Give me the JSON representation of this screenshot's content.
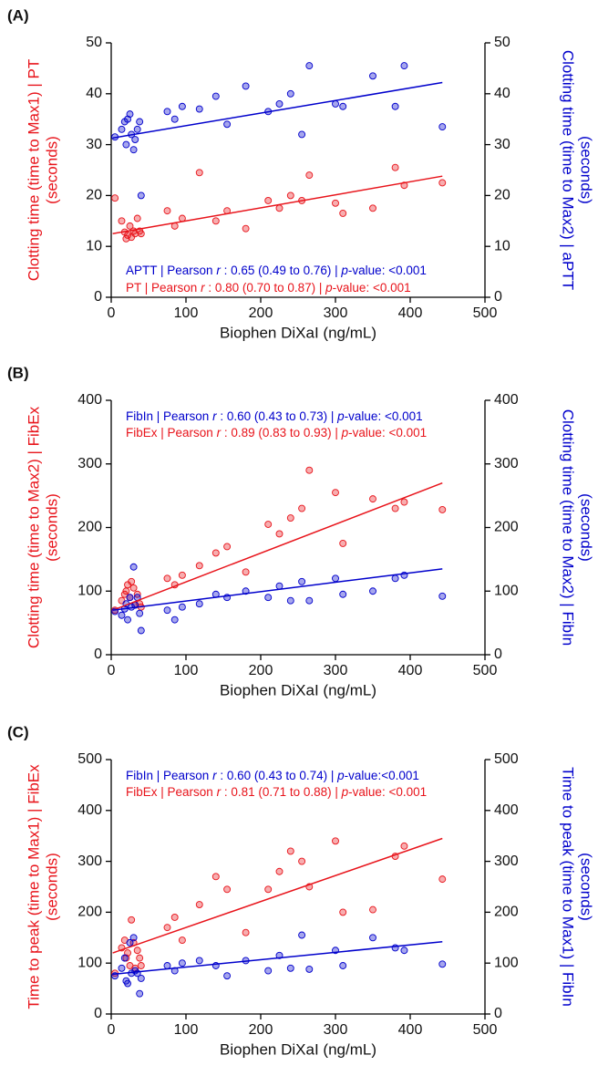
{
  "chart_data": [
    {
      "type": "scatter",
      "panel_label": "(A)",
      "xlabel": "Biophen DiXaI (ng/mL)",
      "ylabel": [
        "Clotting time (time to Max1) | PT",
        "(seconds)"
      ],
      "y2label": [
        "Clotting time (time to Max2) | aPTT",
        "(seconds)"
      ],
      "xlim": [
        0,
        500
      ],
      "xticks": [
        0,
        100,
        200,
        300,
        400,
        500
      ],
      "ylim": [
        0,
        50
      ],
      "yticks": [
        0,
        10,
        20,
        30,
        40,
        50
      ],
      "y2lim": [
        0,
        50
      ],
      "y2ticks": [
        0,
        10,
        20,
        30,
        40,
        50
      ],
      "annotations": [
        {
          "color": "#0000cc",
          "parts": [
            "APTT | Pearson ",
            "r",
            " : 0.65 (0.49 to 0.76) | ",
            "p",
            "-value: <0.001"
          ]
        },
        {
          "color": "#e8141b",
          "parts": [
            "PT | Pearson ",
            "r",
            " : 0.80 (0.70 to 0.87) | ",
            "p",
            "-value: <0.001"
          ]
        }
      ],
      "series": [
        {
          "color": "#e8141b",
          "axis": "y",
          "x": [
            5,
            14,
            18,
            20,
            22,
            25,
            27,
            30,
            32,
            35,
            38,
            40,
            75,
            85,
            95,
            118,
            140,
            155,
            180,
            210,
            225,
            240,
            255,
            265,
            300,
            310,
            350,
            380,
            392,
            443
          ],
          "values": [
            19.5,
            15,
            12.8,
            11.5,
            12.2,
            14,
            11.8,
            13,
            12.5,
            15.5,
            13,
            12.5,
            17,
            14,
            15.5,
            24.5,
            15,
            17,
            13.5,
            19,
            17.5,
            20,
            19,
            24,
            18.5,
            16.5,
            17.5,
            25.5,
            22,
            22.5
          ],
          "fit": {
            "x": [
              2,
              443
            ],
            "y": [
              12.5,
              23.8
            ]
          }
        },
        {
          "color": "#0000cc",
          "axis": "y2",
          "x": [
            5,
            14,
            18,
            20,
            22,
            25,
            27,
            30,
            32,
            35,
            38,
            40,
            75,
            85,
            95,
            118,
            140,
            155,
            180,
            210,
            225,
            240,
            255,
            265,
            300,
            310,
            350,
            380,
            392,
            443
          ],
          "values": [
            31.5,
            33,
            34.5,
            30,
            35,
            36,
            32,
            29,
            31,
            33,
            34.5,
            20,
            36.5,
            35,
            37.5,
            37,
            39.5,
            34,
            41.5,
            36.5,
            38,
            40,
            32,
            45.5,
            38,
            37.5,
            43.5,
            37.5,
            45.5,
            33.5
          ],
          "fit": {
            "x": [
              2,
              443
            ],
            "y": [
              31.3,
              42.2
            ]
          }
        }
      ]
    },
    {
      "type": "scatter",
      "panel_label": "(B)",
      "xlabel": "Biophen DiXaI (ng/mL)",
      "ylabel": [
        "Clotting time (time to Max2) | FibEx",
        "(seconds)"
      ],
      "y2label": [
        "Clotting time (time to Max2) | FibIn",
        "(seconds)"
      ],
      "xlim": [
        0,
        500
      ],
      "xticks": [
        0,
        100,
        200,
        300,
        400,
        500
      ],
      "ylim": [
        0,
        400
      ],
      "yticks": [
        0,
        100,
        200,
        300,
        400
      ],
      "y2lim": [
        0,
        400
      ],
      "y2ticks": [
        0,
        100,
        200,
        300,
        400
      ],
      "annotations": [
        {
          "color": "#0000cc",
          "parts": [
            "FibIn | Pearson ",
            "r",
            " : 0.60 (0.43 to 0.73) | ",
            "p",
            "-value: <0.001"
          ]
        },
        {
          "color": "#e8141b",
          "parts": [
            "FibEx | Pearson ",
            "r",
            " : 0.89 (0.83 to 0.93) | ",
            "p",
            "-value: <0.001"
          ]
        }
      ],
      "series": [
        {
          "color": "#e8141b",
          "axis": "y",
          "x": [
            5,
            14,
            18,
            20,
            22,
            25,
            27,
            30,
            32,
            35,
            38,
            40,
            75,
            85,
            95,
            118,
            140,
            155,
            180,
            210,
            225,
            240,
            255,
            265,
            300,
            310,
            350,
            380,
            392,
            443
          ],
          "values": [
            70,
            85,
            95,
            100,
            110,
            90,
            115,
            105,
            78,
            95,
            80,
            75,
            120,
            110,
            125,
            140,
            160,
            170,
            130,
            205,
            190,
            215,
            230,
            290,
            255,
            175,
            245,
            230,
            240,
            228
          ],
          "fit": {
            "x": [
              2,
              443
            ],
            "y": [
              70,
              270
            ]
          }
        },
        {
          "color": "#0000cc",
          "axis": "y2",
          "x": [
            5,
            14,
            18,
            20,
            22,
            25,
            27,
            30,
            32,
            35,
            38,
            40,
            75,
            85,
            95,
            118,
            140,
            155,
            180,
            210,
            225,
            240,
            255,
            265,
            300,
            310,
            350,
            380,
            392,
            443
          ],
          "values": [
            68,
            62,
            72,
            80,
            55,
            90,
            75,
            138,
            78,
            90,
            65,
            38,
            70,
            55,
            75,
            80,
            95,
            90,
            100,
            90,
            108,
            85,
            115,
            85,
            120,
            95,
            100,
            120,
            125,
            92
          ],
          "fit": {
            "x": [
              2,
              443
            ],
            "y": [
              70,
              135
            ]
          }
        }
      ]
    },
    {
      "type": "scatter",
      "panel_label": "(C)",
      "xlabel": "Biophen DiXaI (ng/mL)",
      "ylabel": [
        "Time to peak (time to Max1) | FibEx",
        "(seconds)"
      ],
      "y2label": [
        "Time to peak (time to Max1) | FibIn",
        "(seconds)"
      ],
      "xlim": [
        0,
        500
      ],
      "xticks": [
        0,
        100,
        200,
        300,
        400,
        500
      ],
      "ylim": [
        0,
        500
      ],
      "yticks": [
        0,
        100,
        200,
        300,
        400,
        500
      ],
      "y2lim": [
        0,
        500
      ],
      "y2ticks": [
        0,
        100,
        200,
        300,
        400,
        500
      ],
      "annotations": [
        {
          "color": "#0000cc",
          "parts": [
            "FibIn | Pearson ",
            "r",
            " : 0.60 (0.43 to 0.74) | ",
            "p",
            "-value:<0.001"
          ]
        },
        {
          "color": "#e8141b",
          "parts": [
            "FibEx | Pearson ",
            "r",
            " : 0.81 (0.71 to 0.88) | ",
            "p",
            "-value: <0.001"
          ]
        }
      ],
      "series": [
        {
          "color": "#e8141b",
          "axis": "y",
          "x": [
            5,
            14,
            18,
            20,
            22,
            25,
            27,
            30,
            32,
            35,
            38,
            40,
            75,
            85,
            95,
            118,
            140,
            155,
            180,
            210,
            225,
            240,
            255,
            265,
            300,
            310,
            350,
            380,
            392,
            443
          ],
          "values": [
            80,
            130,
            145,
            110,
            120,
            95,
            185,
            140,
            90,
            125,
            110,
            95,
            170,
            190,
            145,
            215,
            270,
            245,
            160,
            245,
            280,
            320,
            300,
            250,
            340,
            200,
            205,
            310,
            330,
            265
          ],
          "fit": {
            "x": [
              2,
              443
            ],
            "y": [
              120,
              345
            ]
          }
        },
        {
          "color": "#0000cc",
          "axis": "y2",
          "x": [
            5,
            14,
            18,
            20,
            22,
            25,
            27,
            30,
            32,
            35,
            38,
            40,
            75,
            85,
            95,
            118,
            140,
            155,
            180,
            210,
            225,
            240,
            255,
            265,
            300,
            310,
            350,
            380,
            392,
            443
          ],
          "values": [
            75,
            90,
            110,
            65,
            60,
            140,
            80,
            150,
            85,
            80,
            40,
            70,
            95,
            85,
            100,
            105,
            95,
            75,
            105,
            85,
            115,
            90,
            155,
            88,
            125,
            95,
            150,
            130,
            125,
            98
          ],
          "fit": {
            "x": [
              2,
              443
            ],
            "y": [
              78,
              142
            ]
          }
        }
      ]
    }
  ]
}
